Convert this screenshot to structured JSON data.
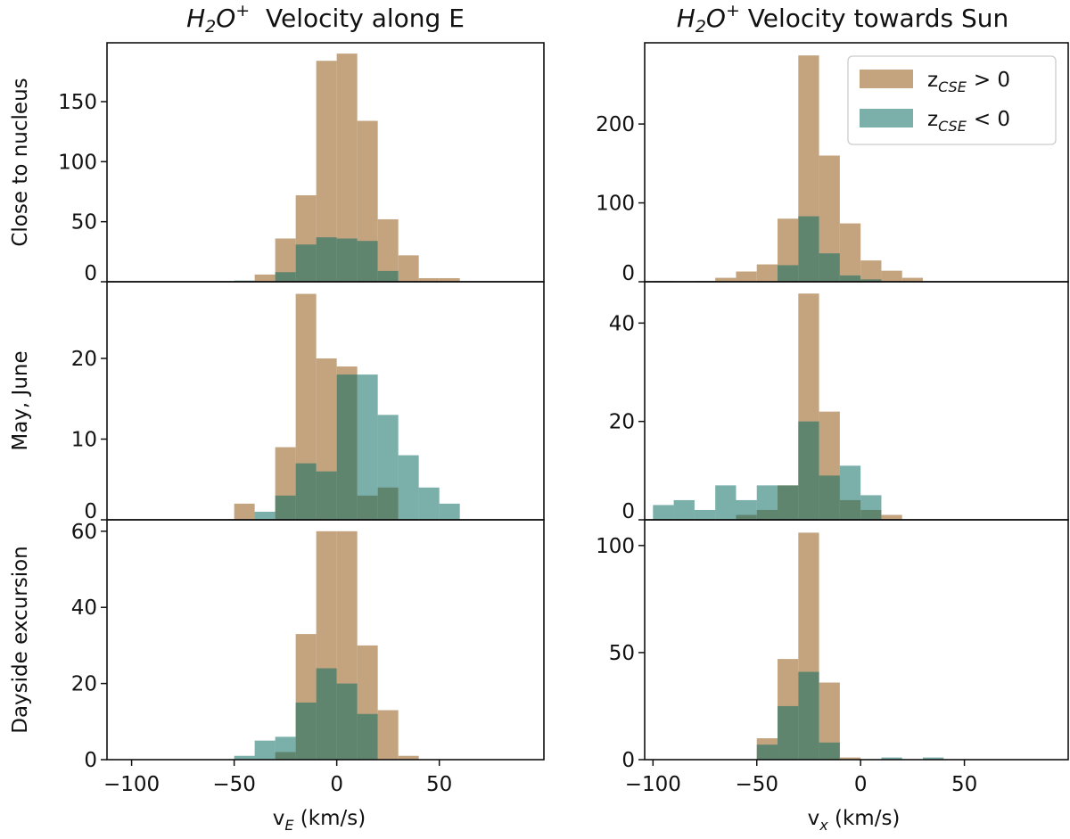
{
  "chart_data": {
    "type": "bar",
    "histogram": true,
    "bin_width": 10,
    "colors": {
      "positive": "#c4a47f",
      "negative": "#096b62"
    },
    "legend": {
      "placement": "top-right",
      "entries": [
        "z_CSE > 0",
        "z_CSE < 0"
      ],
      "main": [
        "z",
        "z"
      ],
      "sub": [
        "CSE",
        "CSE"
      ],
      "rel": [
        "> 0",
        "< 0"
      ]
    },
    "columns": [
      {
        "title_main": "H",
        "title_sub": "2",
        "title_o": "O",
        "title_sup": "+",
        "title_rest": "  Velocity along E",
        "xlabel_main": "v",
        "xlabel_sub": "E",
        "xlabel_rest": " (km/s)",
        "xlim": [
          -112,
          101
        ]
      },
      {
        "title_main": "H",
        "title_sub": "2",
        "title_o": "O",
        "title_sup": "+",
        "title_rest": " Velocity towards Sun",
        "xlabel_main": "v",
        "xlabel_sub": "x",
        "xlabel_rest": " (km/s)",
        "xlim": [
          -104,
          100
        ]
      }
    ],
    "xticks": [
      "−100",
      "−50",
      "0",
      "50"
    ],
    "xtick_values": [
      -100,
      -50,
      0,
      50
    ],
    "rows": [
      "Close to nucleus",
      "May, June",
      "Dayside excursion"
    ],
    "panels": [
      {
        "row": 0,
        "col": 0,
        "ylim": [
          0,
          199
        ],
        "yticks": [
          0,
          50,
          100,
          150
        ],
        "bin_start": -50,
        "positive": [
          0,
          6,
          36,
          72,
          184,
          190,
          134,
          52,
          22,
          3,
          3
        ],
        "negative": [
          1,
          0,
          8,
          31,
          37,
          36,
          34,
          9,
          0,
          0,
          0
        ]
      },
      {
        "row": 0,
        "col": 1,
        "ylim": [
          0,
          303
        ],
        "yticks": [
          0,
          100,
          200
        ],
        "bin_start": -100,
        "positive": [
          1,
          0,
          1,
          5,
          13,
          22,
          80,
          287,
          160,
          74,
          27,
          14,
          5
        ],
        "negative": [
          0,
          0,
          0,
          0,
          0,
          0,
          21,
          83,
          36,
          8,
          3,
          0,
          0
        ]
      },
      {
        "row": 1,
        "col": 0,
        "ylim": [
          0,
          29.5
        ],
        "yticks": [
          0,
          10,
          20
        ],
        "bin_start": -50,
        "positive": [
          2,
          0,
          9,
          28,
          20,
          19,
          3,
          4,
          0,
          0,
          0
        ],
        "negative": [
          0,
          1,
          3,
          7,
          6,
          18,
          18,
          13,
          8,
          4,
          2
        ]
      },
      {
        "row": 1,
        "col": 1,
        "ylim": [
          0,
          48.4
        ],
        "yticks": [
          0,
          20,
          40
        ],
        "bin_start": -100,
        "positive": [
          0,
          0,
          0,
          0,
          1,
          2,
          7,
          46,
          22,
          4,
          2,
          1
        ],
        "negative": [
          3,
          4,
          2,
          7,
          4,
          7,
          7,
          20,
          9,
          11,
          5,
          0
        ]
      },
      {
        "row": 2,
        "col": 0,
        "ylim": [
          0,
          63
        ],
        "yticks": [
          0,
          20,
          40,
          60
        ],
        "bin_start": -50,
        "positive": [
          0,
          0,
          2,
          33,
          60,
          60,
          30,
          13,
          1
        ],
        "negative": [
          1,
          5,
          6,
          15,
          24,
          20,
          12,
          0,
          0
        ]
      },
      {
        "row": 2,
        "col": 1,
        "ylim": [
          0,
          112
        ],
        "yticks": [
          0,
          50,
          100
        ],
        "bin_start": -50,
        "positive": [
          10,
          47,
          106,
          36,
          1,
          0,
          0,
          0,
          0
        ],
        "negative": [
          7,
          25,
          41,
          8,
          0,
          0,
          1,
          0,
          1
        ]
      }
    ]
  }
}
